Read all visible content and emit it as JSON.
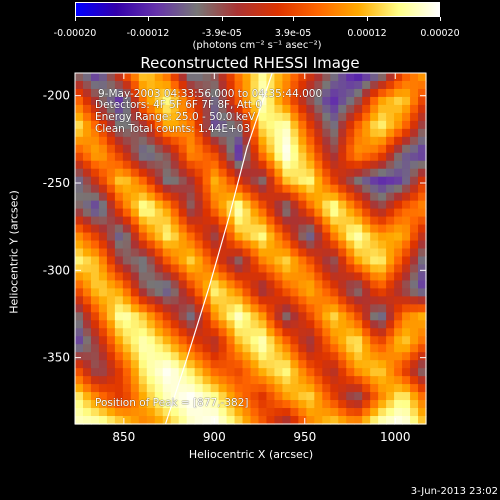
{
  "colorbar": {
    "tick_labels": [
      "-0.00020",
      "-0.00012",
      "-3.9e-05",
      "3.9e-05",
      "0.00012",
      "0.00020"
    ],
    "unit_label": "(photons cm⁻² s⁻¹ asec⁻²)",
    "colors": [
      "#0000ff",
      "#3300aa",
      "#6633aa",
      "#777777",
      "#aa3333",
      "#dd3300",
      "#ff6600",
      "#ffaa00",
      "#ffff88",
      "#ffffff"
    ]
  },
  "annotations": {
    "time": "9-May-2003 04:33:56.000 to 04:35:44.000",
    "detectors": "Detectors: 4F 5F 6F 7F 8F, Att 0",
    "energy": "Energy Range: 25.0 - 50.0 keV",
    "clean": "Clean    Total counts: 1.44E+03",
    "peak": "Position of Peak = [877,-382]"
  },
  "footer": {
    "date": "3-Jun-2013 23:02"
  },
  "chart_data": {
    "type": "heatmap",
    "title": "Reconstructed RHESSI Image",
    "xlabel": "Heliocentric X (arcsec)",
    "ylabel": "Heliocentric Y (arcsec)",
    "xlim": [
      823,
      1017
    ],
    "ylim": [
      -388,
      -187
    ],
    "x_ticks": [
      850,
      900,
      950,
      1000
    ],
    "y_ticks": [
      -350,
      -300,
      -250,
      -200
    ],
    "x_tick_labels": [
      "850",
      "900",
      "950",
      "1000"
    ],
    "y_tick_labels": [
      "-350",
      "-300",
      "-250",
      "-200"
    ],
    "zlim": [
      -0.0002,
      0.0002
    ],
    "peak": [
      877,
      -382
    ],
    "limb_curve": [
      [
        873,
        -388
      ],
      [
        885,
        -350
      ],
      [
        897,
        -310
      ],
      [
        908,
        -270
      ],
      [
        918,
        -230
      ],
      [
        932,
        -187
      ]
    ],
    "intensity_grid_rows_top_to_bottom": [
      [
        -0.3,
        -0.6,
        0.2,
        0.7,
        0.3,
        -0.5,
        -0.2,
        0.4,
        0.8,
        0.5,
        0.1,
        -0.3,
        -0.7,
        -0.5,
        0.2,
        0.6
      ],
      [
        0.4,
        -0.2,
        -0.6,
        0.5,
        0.8,
        0.2,
        -0.4,
        0.3,
        0.9,
        0.4,
        -0.2,
        -0.6,
        -0.3,
        0.5,
        0.7,
        0.1
      ],
      [
        0.8,
        0.3,
        -0.4,
        -0.1,
        0.6,
        0.4,
        -0.5,
        -0.3,
        0.7,
        0.9,
        0.2,
        -0.4,
        0.3,
        0.8,
        0.4,
        -0.3
      ],
      [
        0.2,
        0.6,
        0.1,
        -0.5,
        -0.2,
        0.5,
        0.2,
        -0.6,
        0.4,
        1.0,
        0.5,
        -0.2,
        0.5,
        0.3,
        -0.4,
        -0.6
      ],
      [
        -0.5,
        0.1,
        0.7,
        0.3,
        -0.4,
        -0.1,
        0.6,
        0.1,
        -0.3,
        0.6,
        0.8,
        0.2,
        -0.3,
        -0.6,
        -0.5,
        0.2
      ],
      [
        -0.2,
        -0.6,
        0.3,
        0.9,
        0.5,
        -0.3,
        0.4,
        0.9,
        0.3,
        -0.4,
        0.3,
        0.9,
        0.4,
        -0.2,
        0.3,
        0.5
      ],
      [
        0.5,
        0.1,
        -0.5,
        0.4,
        0.8,
        0.3,
        -0.2,
        0.6,
        0.8,
        0.2,
        -0.5,
        0.4,
        0.9,
        0.5,
        0.6,
        -0.1
      ],
      [
        0.8,
        0.6,
        -0.2,
        -0.4,
        0.3,
        0.7,
        0.2,
        -0.3,
        0.4,
        0.7,
        0.3,
        -0.3,
        0.5,
        0.8,
        0.2,
        -0.5
      ],
      [
        0.2,
        0.7,
        0.5,
        -0.3,
        -0.5,
        0.2,
        0.8,
        0.4,
        -0.2,
        0.3,
        0.6,
        0.2,
        -0.4,
        0.3,
        -0.2,
        -0.6
      ],
      [
        -0.4,
        0.3,
        0.9,
        0.6,
        0.1,
        -0.4,
        0.5,
        0.9,
        0.5,
        -0.3,
        0.2,
        0.7,
        0.3,
        -0.5,
        0.4,
        0.6
      ],
      [
        -0.6,
        -0.1,
        0.6,
        0.9,
        0.6,
        0.2,
        -0.1,
        0.6,
        0.9,
        0.4,
        -0.2,
        0.4,
        0.8,
        0.2,
        0.7,
        0.3
      ],
      [
        0.3,
        -0.3,
        0.2,
        0.8,
        1.0,
        0.7,
        0.3,
        0.2,
        0.6,
        0.8,
        0.3,
        -0.1,
        0.5,
        0.7,
        0.2,
        -0.4
      ],
      [
        0.8,
        0.4,
        0.1,
        0.6,
        0.9,
        1.0,
        0.8,
        0.4,
        0.1,
        0.5,
        0.7,
        0.2,
        -0.3,
        0.4,
        0.8,
        0.3
      ],
      [
        0.9,
        0.9,
        0.7,
        0.4,
        0.6,
        0.9,
        1.0,
        0.7,
        0.3,
        -0.2,
        0.4,
        0.7,
        0.5,
        0.9,
        1.0,
        0.6
      ]
    ]
  }
}
